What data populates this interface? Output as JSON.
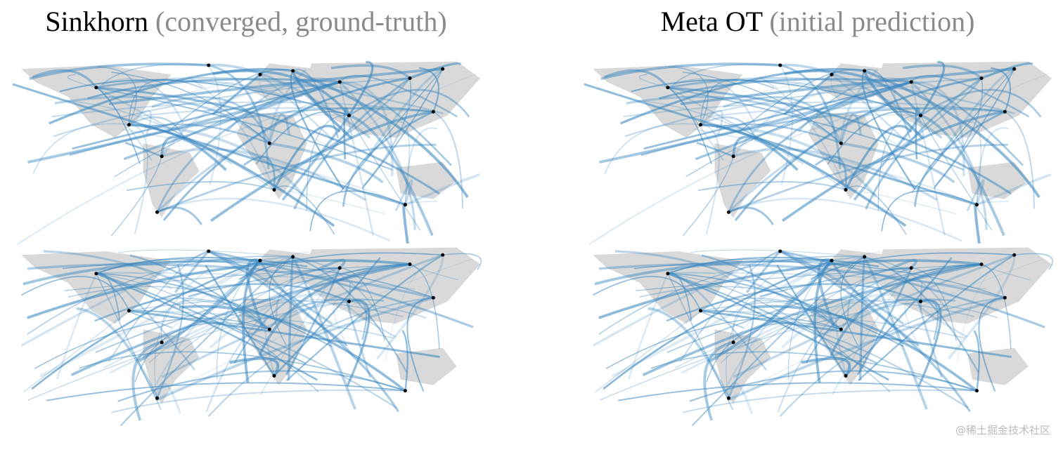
{
  "panels": [
    {
      "title": "Sinkhorn",
      "subtitle": "(converged, ground-truth)"
    },
    {
      "title": "Meta OT",
      "subtitle": "(initial prediction)"
    }
  ],
  "watermark": "@稀土掘金技术社区"
}
